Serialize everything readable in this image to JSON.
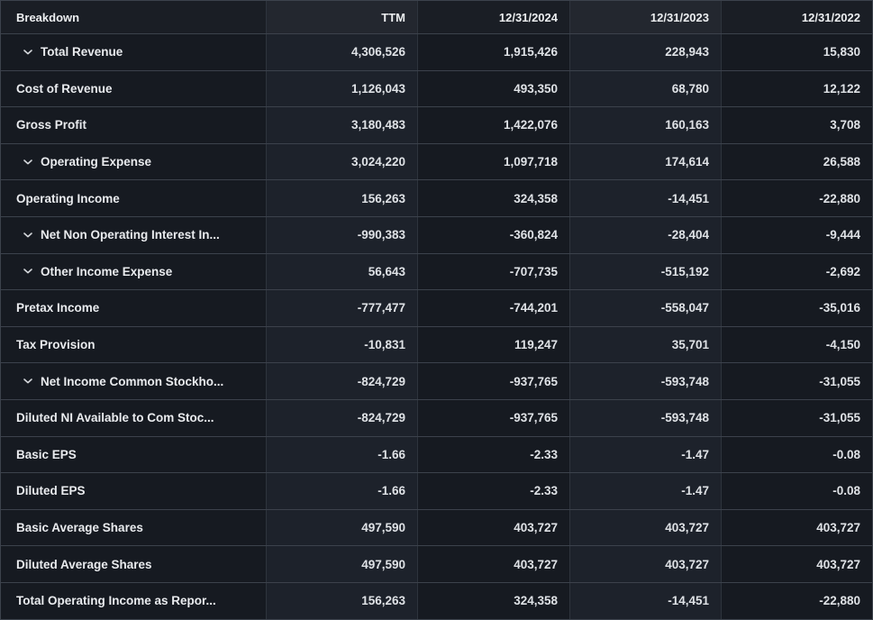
{
  "page": {
    "background": "#12151a"
  },
  "colors": {
    "cell_dark": "#161a21",
    "cell_light": "#1d222b",
    "header_dark": "#1a1e25",
    "header_light": "#23272f",
    "row_border": "#3c424c",
    "col_border": "#2e343d",
    "label_text": "#e9ebee",
    "value_text": "#dfe2e6"
  },
  "icons": {
    "expand_row": "chevron-down-icon"
  },
  "table": {
    "columns": [
      {
        "label": "Breakdown",
        "align": "left",
        "shade": "dark"
      },
      {
        "label": "TTM",
        "align": "right",
        "shade": "light"
      },
      {
        "label": "12/31/2024",
        "align": "right",
        "shade": "dark"
      },
      {
        "label": "12/31/2023",
        "align": "right",
        "shade": "light"
      },
      {
        "label": "12/31/2022",
        "align": "right",
        "shade": "dark"
      }
    ],
    "rows": [
      {
        "label": "Total Revenue",
        "expandable": true,
        "values": [
          "4,306,526",
          "1,915,426",
          "228,943",
          "15,830"
        ]
      },
      {
        "label": "Cost of Revenue",
        "expandable": false,
        "values": [
          "1,126,043",
          "493,350",
          "68,780",
          "12,122"
        ]
      },
      {
        "label": "Gross Profit",
        "expandable": false,
        "values": [
          "3,180,483",
          "1,422,076",
          "160,163",
          "3,708"
        ]
      },
      {
        "label": "Operating Expense",
        "expandable": true,
        "values": [
          "3,024,220",
          "1,097,718",
          "174,614",
          "26,588"
        ]
      },
      {
        "label": "Operating Income",
        "expandable": false,
        "values": [
          "156,263",
          "324,358",
          "-14,451",
          "-22,880"
        ]
      },
      {
        "label": "Net Non Operating Interest In...",
        "expandable": true,
        "values": [
          "-990,383",
          "-360,824",
          "-28,404",
          "-9,444"
        ]
      },
      {
        "label": "Other Income Expense",
        "expandable": true,
        "values": [
          "56,643",
          "-707,735",
          "-515,192",
          "-2,692"
        ]
      },
      {
        "label": "Pretax Income",
        "expandable": false,
        "values": [
          "-777,477",
          "-744,201",
          "-558,047",
          "-35,016"
        ]
      },
      {
        "label": "Tax Provision",
        "expandable": false,
        "values": [
          "-10,831",
          "119,247",
          "35,701",
          "-4,150"
        ]
      },
      {
        "label": "Net Income Common Stockho...",
        "expandable": true,
        "values": [
          "-824,729",
          "-937,765",
          "-593,748",
          "-31,055"
        ]
      },
      {
        "label": "Diluted NI Available to Com Stoc...",
        "expandable": false,
        "values": [
          "-824,729",
          "-937,765",
          "-593,748",
          "-31,055"
        ]
      },
      {
        "label": "Basic EPS",
        "expandable": false,
        "values": [
          "-1.66",
          "-2.33",
          "-1.47",
          "-0.08"
        ]
      },
      {
        "label": "Diluted EPS",
        "expandable": false,
        "values": [
          "-1.66",
          "-2.33",
          "-1.47",
          "-0.08"
        ]
      },
      {
        "label": "Basic Average Shares",
        "expandable": false,
        "values": [
          "497,590",
          "403,727",
          "403,727",
          "403,727"
        ]
      },
      {
        "label": "Diluted Average Shares",
        "expandable": false,
        "values": [
          "497,590",
          "403,727",
          "403,727",
          "403,727"
        ]
      },
      {
        "label": "Total Operating Income as Repor...",
        "expandable": false,
        "values": [
          "156,263",
          "324,358",
          "-14,451",
          "-22,880"
        ]
      }
    ]
  }
}
